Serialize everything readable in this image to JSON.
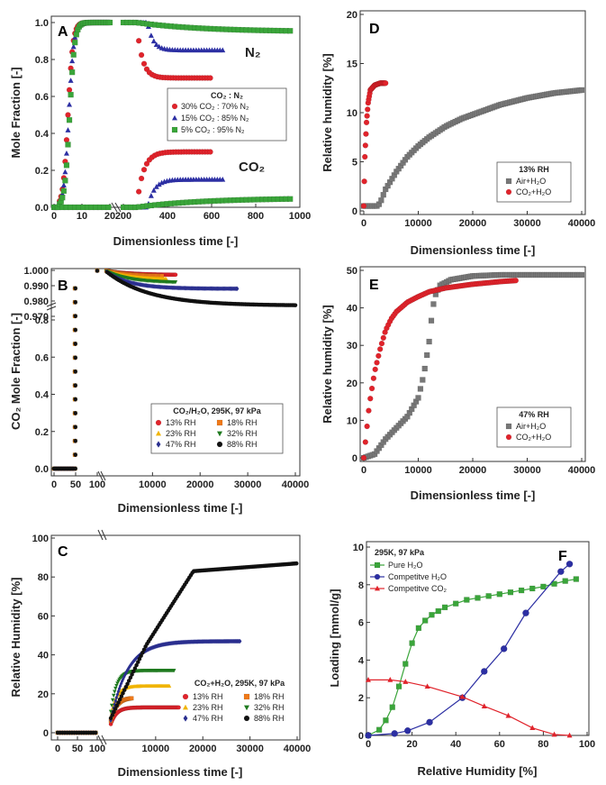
{
  "colors": {
    "red": "#e0232b",
    "blue": "#2c2fa3",
    "green": "#3aa53a",
    "black": "#111111",
    "orange": "#f07a1a",
    "yellow": "#f0b400",
    "dgreen": "#1f7a1f",
    "navy": "#2a2f8f",
    "gray": "#777777"
  },
  "chart_data": [
    {
      "panel": "A",
      "type": "scatter",
      "xlabel": "Dimensionless time [-]",
      "ylabel": "Mole Fraction [-]",
      "xticks": [
        "0",
        "10",
        "20",
        "200",
        "400",
        "600",
        "800",
        "1000"
      ],
      "yticks": [
        "0.0",
        "0.2",
        "0.4",
        "0.6",
        "0.8",
        "1.0"
      ],
      "xlim_break": [
        [
          0,
          20
        ],
        [
          200,
          1000
        ]
      ],
      "ylim": [
        0,
        1
      ],
      "legend": {
        "title": "CO₂ : N₂",
        "entries": [
          "30% CO₂ : 70% N₂",
          "15% CO₂ : 85% N₂",
          "5% CO₂ : 95% N₂"
        ]
      },
      "annotations": [
        "N₂",
        "CO₂"
      ],
      "series": [
        {
          "name": "30% CO₂ : 70% N₂",
          "early_rise_t": [
            2,
            9
          ],
          "N2_plateau": 0.7,
          "CO2_plateau": 0.3,
          "end_t": 600
        },
        {
          "name": "15% CO₂ : 85% N₂",
          "early_rise_t": [
            2,
            9
          ],
          "N2_plateau": 0.85,
          "CO2_plateau": 0.15,
          "end_t": 650
        },
        {
          "name": "5% CO₂ : 95% N₂",
          "early_rise_t": [
            2,
            10
          ],
          "N2_plateau": 0.95,
          "CO2_plateau": 0.05,
          "end_t": 960
        }
      ]
    },
    {
      "panel": "B",
      "type": "scatter",
      "xlabel": "Dimensionless time [-]",
      "ylabel": "CO₂ Mole Fraction [-]",
      "xticks": [
        "0",
        "50",
        "100",
        "10000",
        "20000",
        "30000",
        "40000"
      ],
      "yticks_lower": [
        "0.0",
        "0.2",
        "0.4",
        "0.6",
        "0.8"
      ],
      "yticks_upper": [
        "0.970",
        "0.980",
        "0.990",
        "1.000"
      ],
      "legend": {
        "title": "CO₂/H₂O, 295K, 97 kPa",
        "entries": [
          "13% RH",
          "18% RH",
          "23% RH",
          "32% RH",
          "47% RH",
          "88% RH"
        ]
      },
      "series": [
        {
          "name": "13% RH",
          "end_t": 15000,
          "plateau": 0.997
        },
        {
          "name": "18% RH",
          "end_t": 12000,
          "plateau": 0.996
        },
        {
          "name": "23% RH",
          "end_t": 13000,
          "plateau": 0.994
        },
        {
          "name": "32% RH",
          "end_t": 15000,
          "plateau": 0.992
        },
        {
          "name": "47% RH",
          "end_t": 28000,
          "plateau": 0.988
        },
        {
          "name": "88% RH",
          "end_t": 40000,
          "plateau": 0.977
        }
      ]
    },
    {
      "panel": "C",
      "type": "scatter",
      "xlabel": "Dimensionless time [-]",
      "ylabel": "Relative Humidity [%]",
      "xticks": [
        "0",
        "50",
        "100",
        "10000",
        "20000",
        "30000",
        "40000"
      ],
      "yticks": [
        "0",
        "20",
        "40",
        "60",
        "80",
        "100"
      ],
      "legend": {
        "title": "CO₂+H₂O, 295K, 97 kPa",
        "entries": [
          "13% RH",
          "18% RH",
          "23% RH",
          "32% RH",
          "47% RH",
          "88% RH"
        ]
      },
      "series": [
        {
          "name": "13% RH",
          "plateau": 13,
          "end_t": 15000
        },
        {
          "name": "18% RH",
          "plateau": 18,
          "end_t": 5000
        },
        {
          "name": "23% RH",
          "plateau": 24,
          "end_t": 13000
        },
        {
          "name": "32% RH",
          "plateau": 32,
          "end_t": 14000
        },
        {
          "name": "47% RH",
          "plateau": 47,
          "end_t": 28000
        },
        {
          "name": "88% RH",
          "plateau": 87,
          "end_t": 40000
        }
      ]
    },
    {
      "panel": "D",
      "type": "scatter",
      "xlabel": "Dimensionless time [-]",
      "ylabel": "Relative humidity [%]",
      "xticks": [
        "0",
        "10000",
        "20000",
        "30000",
        "40000"
      ],
      "yticks": [
        "0",
        "5",
        "10",
        "15",
        "20"
      ],
      "xlim": [
        0,
        40000
      ],
      "ylim": [
        0,
        20
      ],
      "legend": {
        "title": "13% RH",
        "entries": [
          "Air+H₂O",
          "CO₂+H₂O"
        ]
      },
      "series": [
        {
          "name": "Air+H₂O",
          "x": [
            0,
            2500,
            3000,
            4000,
            6000,
            8000,
            10000,
            12000,
            15000,
            18000,
            20000,
            25000,
            30000,
            35000,
            40000
          ],
          "y": [
            0.5,
            0.5,
            0.8,
            2.2,
            4.0,
            5.5,
            6.6,
            7.5,
            8.6,
            9.4,
            9.8,
            10.8,
            11.5,
            12.0,
            12.3
          ]
        },
        {
          "name": "CO₂+H₂O",
          "x": [
            0,
            200,
            500,
            800,
            1200,
            2000,
            3000,
            4000
          ],
          "y": [
            0.5,
            5.5,
            9,
            11,
            12.3,
            12.8,
            13,
            13
          ]
        }
      ]
    },
    {
      "panel": "E",
      "type": "scatter",
      "xlabel": "Dimensionless time [-]",
      "ylabel": "Relative humidity [%]",
      "xticks": [
        "0",
        "10000",
        "20000",
        "30000",
        "40000"
      ],
      "yticks": [
        "0",
        "10",
        "20",
        "30",
        "40",
        "50"
      ],
      "xlim": [
        0,
        40000
      ],
      "ylim": [
        0,
        50
      ],
      "legend": {
        "title": "47% RH",
        "entries": [
          "Air+H₂O",
          "CO₂+H₂O"
        ]
      },
      "series": [
        {
          "name": "Air+H₂O",
          "x": [
            0,
            2000,
            4000,
            6000,
            8000,
            10000,
            11000,
            12000,
            12500,
            13000,
            14000,
            16000,
            20000,
            25000,
            30000,
            35000,
            40000
          ],
          "y": [
            0,
            1,
            5,
            8,
            11,
            16,
            22,
            31,
            38,
            43,
            46,
            47.5,
            48.5,
            48.8,
            48.8,
            48.8,
            48.8
          ]
        },
        {
          "name": "CO₂+H₂O",
          "x": [
            0,
            500,
            1000,
            2000,
            3000,
            4000,
            5000,
            6000,
            8000,
            10000,
            12000,
            15000,
            20000,
            25000,
            28000
          ],
          "y": [
            0,
            7,
            14,
            23,
            29,
            34,
            37,
            39,
            41.5,
            43,
            44.3,
            45.3,
            46.3,
            47,
            47.3
          ]
        }
      ]
    },
    {
      "panel": "F",
      "type": "line",
      "xlabel": "Relative Humidity [%]",
      "ylabel": "Loading [mmol/g]",
      "title": "295K, 97 kPa",
      "xticks": [
        "0",
        "20",
        "40",
        "60",
        "80",
        "100"
      ],
      "yticks": [
        "0",
        "2",
        "4",
        "6",
        "8",
        "10"
      ],
      "xlim": [
        0,
        100
      ],
      "ylim": [
        0,
        10
      ],
      "legend": {
        "entries": [
          "Pure H₂O",
          "Competitve H₂O",
          "Competitve CO₂"
        ]
      },
      "series": [
        {
          "name": "Pure H₂O",
          "x": [
            0,
            5,
            8,
            11,
            14,
            17,
            20,
            23,
            26,
            29,
            32,
            35,
            40,
            45,
            50,
            55,
            60,
            65,
            70,
            75,
            80,
            85,
            90,
            95
          ],
          "y": [
            0,
            0.3,
            0.8,
            1.5,
            2.6,
            3.8,
            4.9,
            5.7,
            6.1,
            6.4,
            6.6,
            6.8,
            7.0,
            7.2,
            7.3,
            7.4,
            7.5,
            7.6,
            7.7,
            7.8,
            7.9,
            8.05,
            8.2,
            8.3
          ]
        },
        {
          "name": "Competitve H₂O",
          "x": [
            0,
            12,
            18,
            28,
            43,
            53,
            62,
            72,
            88,
            92
          ],
          "y": [
            0,
            0.1,
            0.25,
            0.7,
            2.0,
            3.4,
            4.6,
            6.5,
            8.7,
            9.1
          ]
        },
        {
          "name": "Competitve CO₂",
          "x": [
            0,
            10,
            17,
            27,
            43,
            53,
            64,
            75,
            85,
            92
          ],
          "y": [
            2.95,
            2.95,
            2.85,
            2.6,
            2.05,
            1.55,
            1.05,
            0.4,
            0.05,
            0.0
          ]
        }
      ]
    }
  ]
}
